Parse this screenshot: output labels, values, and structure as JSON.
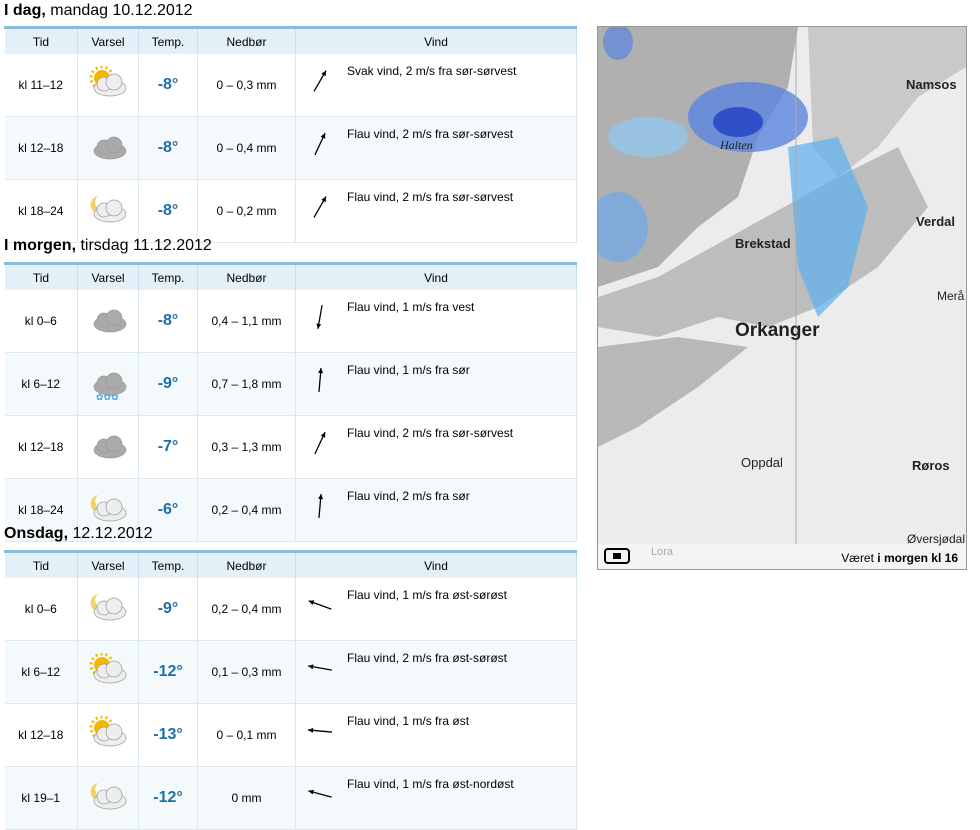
{
  "days": [
    {
      "title": "I dag,",
      "date": "mandag 10.12.2012",
      "columns": [
        "Tid",
        "Varsel",
        "Temp.",
        "Nedbør",
        "Vind"
      ],
      "rows": [
        {
          "time": "kl 11–12",
          "temp": "-8°",
          "precip": "0 – 0,3 mm",
          "wind": "Svak vind, 2 m/s fra sør-sørvest"
        },
        {
          "time": "kl 12–18",
          "temp": "-8°",
          "precip": "0 – 0,4 mm",
          "wind": "Flau vind, 2 m/s fra sør-sørvest"
        },
        {
          "time": "kl 18–24",
          "temp": "-8°",
          "precip": "0 – 0,2 mm",
          "wind": "Flau vind, 2 m/s fra sør-sørvest"
        }
      ]
    },
    {
      "title": "I morgen,",
      "date": "tirsdag 11.12.2012",
      "columns": [
        "Tid",
        "Varsel",
        "Temp.",
        "Nedbør",
        "Vind"
      ],
      "rows": [
        {
          "time": "kl 0–6",
          "temp": "-8°",
          "precip": "0,4 – 1,1 mm",
          "wind": "Flau vind, 1 m/s fra vest"
        },
        {
          "time": "kl 6–12",
          "temp": "-9°",
          "precip": "0,7 – 1,8 mm",
          "wind": "Flau vind, 1 m/s fra sør"
        },
        {
          "time": "kl 12–18",
          "temp": "-7°",
          "precip": "0,3 – 1,3 mm",
          "wind": "Flau vind, 2 m/s fra sør-sørvest"
        },
        {
          "time": "kl 18–24",
          "temp": "-6°",
          "precip": "0,2 – 0,4 mm",
          "wind": "Flau vind, 2 m/s fra sør"
        }
      ]
    },
    {
      "title": "Onsdag,",
      "date": "12.12.2012",
      "columns": [
        "Tid",
        "Varsel",
        "Temp.",
        "Nedbør",
        "Vind"
      ],
      "rows": [
        {
          "time": "kl 0–6",
          "temp": "-9°",
          "precip": "0,2 – 0,4 mm",
          "wind": "Flau vind, 1 m/s fra øst-sørøst"
        },
        {
          "time": "kl 6–12",
          "temp": "-12°",
          "precip": "0,1 – 0,3 mm",
          "wind": "Flau vind, 2 m/s fra øst-sørøst"
        },
        {
          "time": "kl 12–18",
          "temp": "-13°",
          "precip": "0 – 0,1 mm",
          "wind": "Flau vind, 1 m/s fra øst"
        },
        {
          "time": "kl 19–1",
          "temp": "-12°",
          "precip": "0 mm",
          "wind": "Flau vind, 1 m/s fra øst-nordøst"
        }
      ]
    }
  ],
  "map": {
    "places": [
      "Namsos",
      "Halten",
      "Verdal",
      "Brekstad",
      "Merå",
      "Orkanger",
      "Oppdal",
      "Røros",
      "Øversjødal",
      "Lora"
    ],
    "caption": {
      "prefix": "Været",
      "bold": "i morgen kl 16"
    }
  }
}
